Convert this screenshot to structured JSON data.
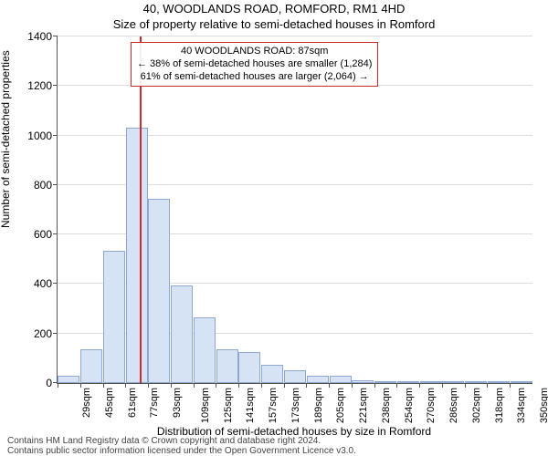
{
  "title_line1": "40, WOODLANDS ROAD, ROMFORD, RM1 4HD",
  "title_line2": "Size of property relative to semi-detached houses in Romford",
  "ylabel": "Number of semi-detached properties",
  "xlabel": "Distribution of semi-detached houses by size in Romford",
  "footer_line1": "Contains HM Land Registry data © Crown copyright and database right 2024.",
  "footer_line2": "Contains public sector information licensed under the Open Government Licence v3.0.",
  "chart": {
    "type": "histogram",
    "background_color": "#ffffff",
    "grid_color": "#dddddd",
    "axis_color": "#555555",
    "bar_fill": "#d6e3f5",
    "bar_stroke": "#8ea8cf",
    "reference_line_color": "#cc2b2b",
    "callout_border_color": "#cc2b2b",
    "callout_bg_color": "rgba(255,255,255,0.92)",
    "ylim": [
      0,
      1400
    ],
    "ytick_step": 200,
    "yticks": [
      0,
      200,
      400,
      600,
      800,
      1000,
      1200,
      1400
    ],
    "xticks": [
      "29sqm",
      "45sqm",
      "61sqm",
      "77sqm",
      "93sqm",
      "109sqm",
      "125sqm",
      "141sqm",
      "157sqm",
      "173sqm",
      "189sqm",
      "205sqm",
      "221sqm",
      "238sqm",
      "254sqm",
      "270sqm",
      "286sqm",
      "302sqm",
      "318sqm",
      "334sqm",
      "350sqm"
    ],
    "bin_start": 29,
    "bin_width": 16,
    "bar_width": 0.97,
    "values": [
      30,
      135,
      535,
      1030,
      745,
      395,
      265,
      135,
      125,
      75,
      50,
      30,
      30,
      12,
      4,
      2,
      1,
      1,
      1,
      1,
      1
    ],
    "reference_value_sqm": 87,
    "reference_bin_position": 3.62,
    "callout": {
      "line1": "40 WOODLANDS ROAD: 87sqm",
      "line2": "← 38% of semi-detached houses are smaller (1,284)",
      "line3": "61% of semi-detached houses are larger (2,064) →"
    },
    "label_fontsize": 12,
    "tick_fontsize": 11,
    "title_fontsize": 13
  }
}
